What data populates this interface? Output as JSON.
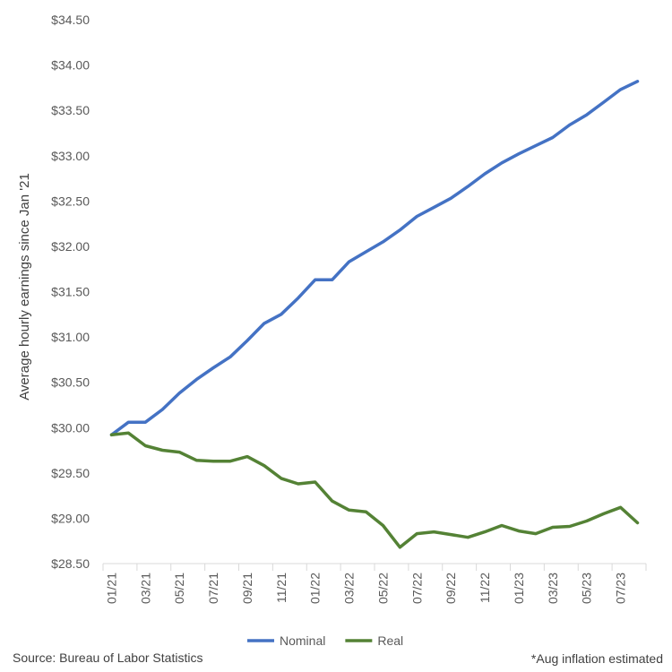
{
  "chart_data": {
    "type": "line",
    "ylabel": "Average hourly earnings since Jan '21",
    "xlabel": "",
    "ylim": [
      28.5,
      34.5
    ],
    "y_ticks": [
      28.5,
      29.0,
      29.5,
      30.0,
      30.5,
      31.0,
      31.5,
      32.0,
      32.5,
      33.0,
      33.5,
      34.0,
      34.5
    ],
    "y_tick_labels": [
      "$28.50",
      "$29.00",
      "$29.50",
      "$30.00",
      "$30.50",
      "$31.00",
      "$31.50",
      "$32.00",
      "$32.50",
      "$33.00",
      "$33.50",
      "$34.00",
      "$34.50"
    ],
    "x": [
      "01/21",
      "02/21",
      "03/21",
      "04/21",
      "05/21",
      "06/21",
      "07/21",
      "08/21",
      "09/21",
      "10/21",
      "11/21",
      "12/21",
      "01/22",
      "02/22",
      "03/22",
      "04/22",
      "05/22",
      "06/22",
      "07/22",
      "08/22",
      "09/22",
      "10/22",
      "11/22",
      "12/22",
      "01/23",
      "02/23",
      "03/23",
      "04/23",
      "05/23",
      "06/23",
      "07/23",
      "08/23"
    ],
    "x_tick_labels": [
      "01/21",
      "03/21",
      "05/21",
      "07/21",
      "09/21",
      "11/21",
      "01/22",
      "03/22",
      "05/22",
      "07/22",
      "09/22",
      "11/22",
      "01/23",
      "03/23",
      "05/23",
      "07/23"
    ],
    "grid": false,
    "legend": "bottom",
    "series": [
      {
        "name": "Nominal",
        "color": "#4472C4",
        "values": [
          29.92,
          30.06,
          30.06,
          30.2,
          30.38,
          30.53,
          30.66,
          30.78,
          30.96,
          31.15,
          31.25,
          31.43,
          31.63,
          31.63,
          31.83,
          31.94,
          32.05,
          32.18,
          32.33,
          32.43,
          32.53,
          32.66,
          32.8,
          32.92,
          33.02,
          33.11,
          33.2,
          33.34,
          33.45,
          33.59,
          33.73,
          33.82
        ]
      },
      {
        "name": "Real",
        "color": "#548235",
        "values": [
          29.92,
          29.94,
          29.8,
          29.75,
          29.73,
          29.64,
          29.63,
          29.63,
          29.68,
          29.58,
          29.44,
          29.38,
          29.4,
          29.19,
          29.09,
          29.07,
          28.92,
          28.68,
          28.83,
          28.85,
          28.82,
          28.79,
          28.85,
          28.92,
          28.86,
          28.83,
          28.9,
          28.91,
          28.97,
          29.05,
          29.12,
          28.95
        ]
      }
    ]
  },
  "footer": {
    "source": "Source: Bureau of Labor Statistics",
    "note": "*Aug inflation estimated"
  }
}
